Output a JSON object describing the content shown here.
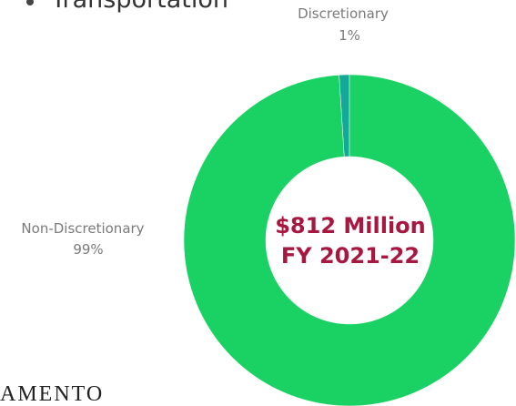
{
  "heading": "Transportation",
  "footer": "AMENTO",
  "chart_data": {
    "type": "pie",
    "categories": [
      "Discretionary",
      "Non-Discretionary"
    ],
    "values": [
      1,
      99
    ],
    "value_labels": [
      "1%",
      "99%"
    ],
    "colors": [
      "#14a89a",
      "#19d263"
    ],
    "center_text": [
      "$812 Million",
      "FY 2021-22"
    ]
  }
}
